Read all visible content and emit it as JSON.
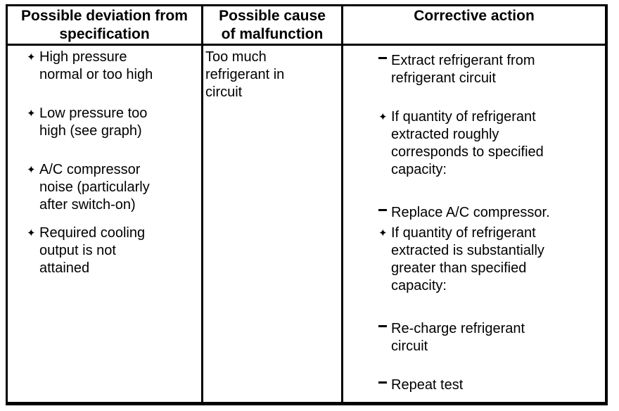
{
  "table": {
    "headers": [
      {
        "id": "deviation",
        "label": "Possible deviation from\nspecification"
      },
      {
        "id": "cause",
        "label": "Possible cause\nof malfunction"
      },
      {
        "id": "corrective",
        "label": "Corrective action"
      }
    ],
    "icons": {
      "star_bullet": "✦",
      "dash_bullet": "−"
    },
    "colors": {
      "border": "#000000",
      "text": "#000000",
      "background": "#ffffff"
    },
    "col1_items": [
      {
        "bullet": "star",
        "gap": "none",
        "text": "High pressure\nnormal or too high"
      },
      {
        "bullet": "star",
        "gap": "line",
        "text": "Low pressure too\nhigh (see graph)"
      },
      {
        "bullet": "star",
        "gap": "line",
        "text": "A/C compressor\nnoise (particularly\nafter switch-on)"
      },
      {
        "bullet": "star",
        "gap": "half",
        "text": "Required cooling\noutput is not\nattained"
      }
    ],
    "col2_text": "Too much\nrefrigerant in\ncircuit",
    "col3_items": [
      {
        "bullet": "dash",
        "gap": "none",
        "text": "Extract refrigerant from\nrefrigerant circuit"
      },
      {
        "bullet": "star",
        "gap": "line",
        "text": "If quantity of refrigerant\nextracted roughly\ncorresponds to specified\ncapacity:"
      },
      {
        "bullet": "dash",
        "gap": "line-lg",
        "text": "Replace A/C compressor."
      },
      {
        "bullet": "star",
        "gap": "sm",
        "text": "If quantity of refrigerant\nextracted is substantially\ngreater than specified\ncapacity:"
      },
      {
        "bullet": "dash",
        "gap": "line-lg",
        "text": "Re-charge refrigerant\ncircuit"
      },
      {
        "bullet": "dash",
        "gap": "line",
        "text": "Repeat test"
      }
    ]
  }
}
